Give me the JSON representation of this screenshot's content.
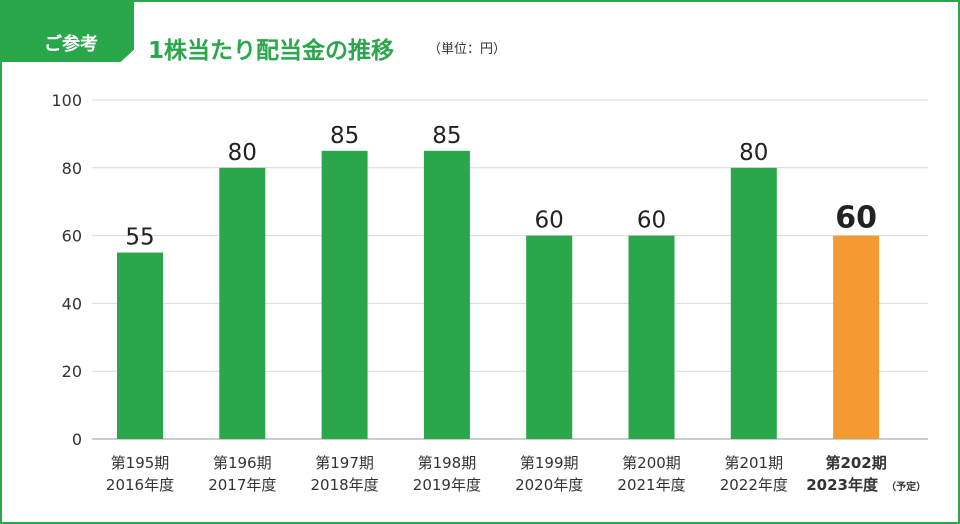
{
  "header": {
    "tag_label": "ご参考",
    "title": "1株当たり配当金の推移",
    "unit": "（単位：円）"
  },
  "colors": {
    "frame": "#2aa64b",
    "bar_actual": "#2aa64b",
    "bar_forecast": "#f39a33",
    "grid": "#d9d9d9",
    "text": "#333333",
    "value_text": "#222222"
  },
  "chart_data": {
    "type": "bar",
    "ylim": [
      0,
      100
    ],
    "yticks": [
      0,
      20,
      40,
      60,
      80,
      100
    ],
    "grid": true,
    "categories": [
      {
        "period": "第195期",
        "year": "2016年度",
        "suffix": "",
        "value": 55,
        "forecast": false
      },
      {
        "period": "第196期",
        "year": "2017年度",
        "suffix": "",
        "value": 80,
        "forecast": false
      },
      {
        "period": "第197期",
        "year": "2018年度",
        "suffix": "",
        "value": 85,
        "forecast": false
      },
      {
        "period": "第198期",
        "year": "2019年度",
        "suffix": "",
        "value": 85,
        "forecast": false
      },
      {
        "period": "第199期",
        "year": "2020年度",
        "suffix": "",
        "value": 60,
        "forecast": false
      },
      {
        "period": "第200期",
        "year": "2021年度",
        "suffix": "",
        "value": 60,
        "forecast": false
      },
      {
        "period": "第201期",
        "year": "2022年度",
        "suffix": "",
        "value": 80,
        "forecast": false
      },
      {
        "period": "第202期",
        "year": "2023年度",
        "suffix": "（予定）",
        "value": 60,
        "forecast": true
      }
    ]
  }
}
